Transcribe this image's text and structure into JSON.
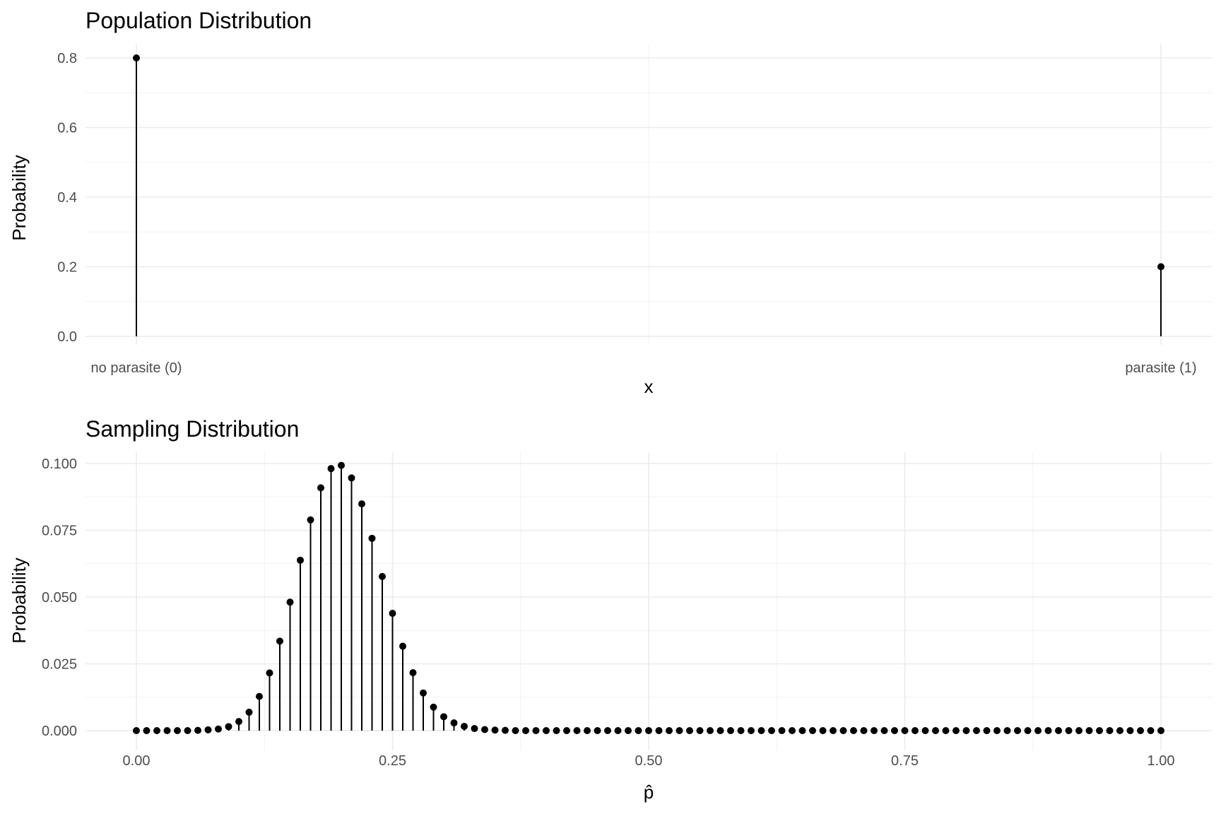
{
  "chart_data": [
    {
      "type": "lollipop",
      "title": "Population Distribution",
      "xlabel": "x",
      "ylabel": "Probability",
      "categories": [
        "no parasite (0)",
        "parasite (1)"
      ],
      "values": [
        0.8,
        0.2
      ],
      "ylim": [
        0,
        0.8
      ],
      "y_ticks": [
        "0.0",
        "0.2",
        "0.4",
        "0.6",
        "0.8"
      ],
      "grid": true,
      "legend": "none"
    },
    {
      "type": "lollipop",
      "title": "Sampling Distribution",
      "xlabel": "p̂",
      "ylabel": "Probability",
      "x_ticks": [
        "0.00",
        "0.25",
        "0.50",
        "0.75",
        "1.00"
      ],
      "y_ticks": [
        "0.000",
        "0.025",
        "0.050",
        "0.075",
        "0.100"
      ],
      "xlim": [
        0,
        1
      ],
      "ylim": [
        0,
        0.1
      ],
      "grid": true,
      "legend": "none",
      "x": [
        0.0,
        0.01,
        0.02,
        0.03,
        0.04,
        0.05,
        0.06,
        0.07,
        0.08,
        0.09,
        0.1,
        0.11,
        0.12,
        0.13,
        0.14,
        0.15,
        0.16,
        0.17,
        0.18,
        0.19,
        0.2,
        0.21,
        0.22,
        0.23,
        0.24,
        0.25,
        0.26,
        0.27,
        0.28,
        0.29,
        0.3,
        0.31,
        0.32,
        0.33,
        0.34,
        0.35,
        0.36,
        0.37,
        0.38,
        0.39,
        0.4,
        0.41,
        0.42,
        0.43,
        0.44,
        0.45,
        0.46,
        0.47,
        0.48,
        0.49,
        0.5,
        0.51,
        0.52,
        0.53,
        0.54,
        0.55,
        0.56,
        0.57,
        0.58,
        0.59,
        0.6,
        0.61,
        0.62,
        0.63,
        0.64,
        0.65,
        0.66,
        0.67,
        0.68,
        0.69,
        0.7,
        0.71,
        0.72,
        0.73,
        0.74,
        0.75,
        0.76,
        0.77,
        0.78,
        0.79,
        0.8,
        0.81,
        0.82,
        0.83,
        0.84,
        0.85,
        0.86,
        0.87,
        0.88,
        0.89,
        0.9,
        0.91,
        0.92,
        0.93,
        0.94,
        0.95,
        0.96,
        0.97,
        0.98,
        0.99,
        1.0
      ],
      "values": [
        0.0,
        0.0,
        0.0,
        0.0,
        0.0,
        0.0,
        0.0001,
        0.0003,
        0.0006,
        0.0015,
        0.0034,
        0.0069,
        0.0128,
        0.0216,
        0.0335,
        0.0481,
        0.0638,
        0.0789,
        0.0909,
        0.0981,
        0.0993,
        0.0946,
        0.0849,
        0.072,
        0.0577,
        0.0439,
        0.0316,
        0.0217,
        0.0141,
        0.0088,
        0.0052,
        0.0029,
        0.0016,
        0.0008,
        0.0004,
        0.0002,
        0.0001,
        0.0,
        0.0,
        0.0,
        0.0,
        0.0,
        0.0,
        0.0,
        0.0,
        0.0,
        0.0,
        0.0,
        0.0,
        0.0,
        0.0,
        0.0,
        0.0,
        0.0,
        0.0,
        0.0,
        0.0,
        0.0,
        0.0,
        0.0,
        0.0,
        0.0,
        0.0,
        0.0,
        0.0,
        0.0,
        0.0,
        0.0,
        0.0,
        0.0,
        0.0,
        0.0,
        0.0,
        0.0,
        0.0,
        0.0,
        0.0,
        0.0,
        0.0,
        0.0,
        0.0,
        0.0,
        0.0,
        0.0,
        0.0,
        0.0,
        0.0,
        0.0,
        0.0,
        0.0,
        0.0,
        0.0,
        0.0,
        0.0,
        0.0,
        0.0,
        0.0,
        0.0,
        0.0,
        0.0,
        0.0
      ]
    }
  ],
  "colors": {
    "mark": "#000000",
    "grid_major": "#ebebeb",
    "grid_minor": "#f2f2f2",
    "tick_text": "#4d4d4d",
    "background": "#ffffff"
  }
}
